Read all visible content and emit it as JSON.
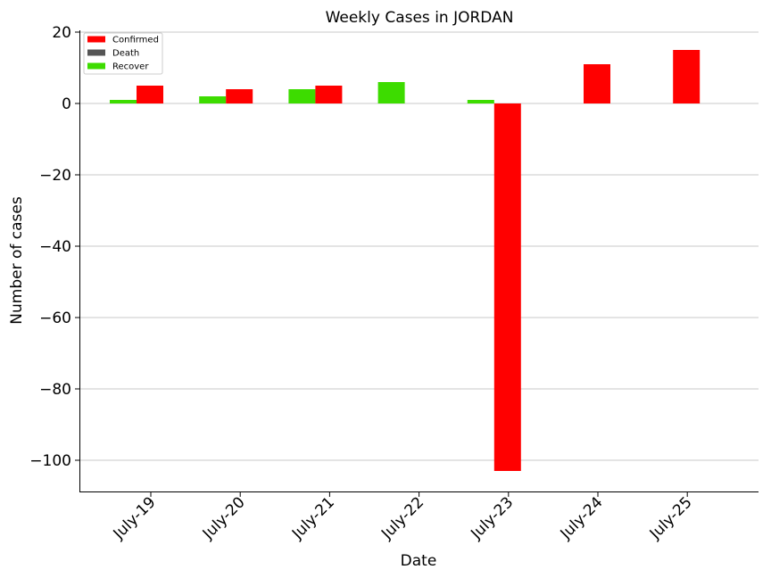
{
  "chart_data": {
    "type": "bar",
    "title": "Weekly Cases in JORDAN",
    "xlabel": "Date",
    "ylabel": "Number of cases",
    "categories": [
      "July-19",
      "July-20",
      "July-21",
      "July-22",
      "July-23",
      "July-24",
      "July-25"
    ],
    "ylim": [
      -109,
      20.5
    ],
    "yticks": [
      20,
      0,
      -20,
      -40,
      -60,
      -80,
      -100
    ],
    "ytick_labels": [
      "20",
      "0",
      "−20",
      "−40",
      "−60",
      "−80",
      "−100"
    ],
    "grid": "horizontal",
    "legend_position": "top-left",
    "series": [
      {
        "name": "Confirmed",
        "color": "#ff0000",
        "values": [
          5,
          4,
          5,
          0,
          -103,
          11,
          15
        ]
      },
      {
        "name": "Death",
        "color": "#555555",
        "values": [
          0,
          0,
          0,
          0,
          0,
          0,
          0
        ]
      },
      {
        "name": "Recover",
        "color": "#3ddc00",
        "values": [
          1,
          2,
          4,
          6,
          1,
          0,
          0
        ]
      }
    ]
  }
}
